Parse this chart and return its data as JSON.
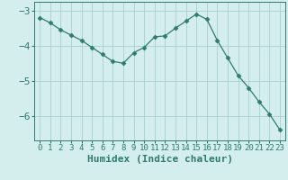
{
  "x": [
    0,
    1,
    2,
    3,
    4,
    5,
    6,
    7,
    8,
    9,
    10,
    11,
    12,
    13,
    14,
    15,
    16,
    17,
    18,
    19,
    20,
    21,
    22,
    23
  ],
  "y": [
    -3.2,
    -3.35,
    -3.55,
    -3.7,
    -3.85,
    -4.05,
    -4.25,
    -4.45,
    -4.5,
    -4.2,
    -4.05,
    -3.75,
    -3.72,
    -3.5,
    -3.3,
    -3.1,
    -3.25,
    -3.85,
    -4.35,
    -4.85,
    -5.2,
    -5.6,
    -5.95,
    -6.4
  ],
  "line_color": "#2d7c6e",
  "marker": "D",
  "marker_size": 2.5,
  "bg_color": "#d4eeed",
  "grid_color": "#aacfce",
  "xlabel": "Humidex (Indice chaleur)",
  "xlim": [
    -0.5,
    23.5
  ],
  "ylim": [
    -6.7,
    -2.75
  ],
  "yticks": [
    -6,
    -5,
    -4,
    -3
  ],
  "tick_color": "#2d7c6e",
  "axis_color": "#2d7c6e",
  "xlabel_fontsize": 8,
  "ytick_fontsize": 8,
  "xtick_fontsize": 6.5
}
